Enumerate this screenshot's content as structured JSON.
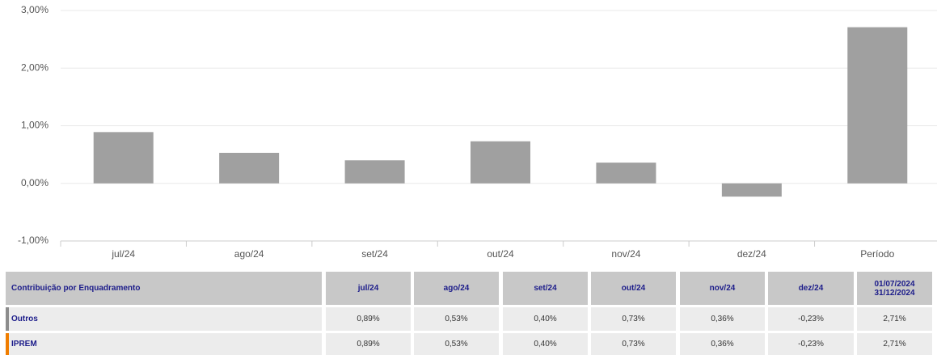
{
  "chart_data": {
    "type": "bar",
    "categories": [
      "jul/24",
      "ago/24",
      "set/24",
      "out/24",
      "nov/24",
      "dez/24",
      "Período"
    ],
    "values": [
      0.89,
      0.53,
      0.4,
      0.73,
      0.36,
      -0.23,
      2.71
    ],
    "color": "#a0a0a0",
    "ylim": [
      -1,
      3
    ],
    "yticks": [
      {
        "value": -1,
        "label": "-1,00%"
      },
      {
        "value": 0,
        "label": "0,00%"
      },
      {
        "value": 1,
        "label": "1,00%"
      },
      {
        "value": 2,
        "label": "2,00%"
      },
      {
        "value": 3,
        "label": "3,00%"
      }
    ],
    "grid": true
  },
  "table": {
    "header": [
      "Contribuição por Enquadramento",
      "jul/24",
      "ago/24",
      "set/24",
      "out/24",
      "nov/24",
      "dez/24",
      [
        "01/07/2024",
        "31/12/2024"
      ]
    ],
    "rows": [
      {
        "label": "Outros",
        "color": "#8c8c8c",
        "cells": [
          "0,89%",
          "0,53%",
          "0,40%",
          "0,73%",
          "0,36%",
          "-0,23%",
          "2,71%"
        ]
      },
      {
        "label": "IPREM",
        "color": "#f07d00",
        "cells": [
          "0,89%",
          "0,53%",
          "0,40%",
          "0,73%",
          "0,36%",
          "-0,23%",
          "2,71%"
        ]
      }
    ]
  }
}
